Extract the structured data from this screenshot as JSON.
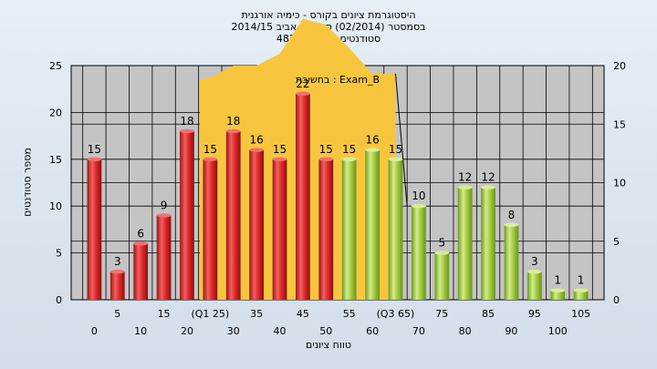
{
  "titles": {
    "line1": "היסטוגרמת ציונים בקורס - כימיה אורגנית",
    "line2": "בסמסטר  (02/2014)  סמסטר אביב 2014/15",
    "line3": "סטודנטים רשומים - 482"
  },
  "chart_data": {
    "type": "bar",
    "title": "היסטוגרמת ציונים בקורס - כימיה אורגנית",
    "xlabel": "טווח ציונים",
    "ylabel": "מספר סטודנטים",
    "annotation": "בחשיבת : Exam_B",
    "categories": [
      "0",
      "5",
      "10",
      "15",
      "20",
      "(Q1 25)",
      "30",
      "35",
      "40",
      "45",
      "50",
      "55",
      "60",
      "(Q3 65)",
      "70",
      "75",
      "80",
      "85",
      "90",
      "95",
      "100",
      "105"
    ],
    "values": [
      15,
      3,
      6,
      9,
      18,
      15,
      18,
      16,
      15,
      22,
      15,
      15,
      16,
      15,
      10,
      5,
      12,
      12,
      8,
      3,
      1,
      1
    ],
    "bar_colors": [
      "red",
      "red",
      "red",
      "red",
      "red",
      "red",
      "red",
      "red",
      "red",
      "red",
      "red",
      "green",
      "green",
      "green",
      "green",
      "green",
      "green",
      "green",
      "green",
      "green",
      "green",
      "green"
    ],
    "ylim": [
      0,
      25
    ],
    "yticks": [
      0,
      5,
      10,
      15,
      20,
      25
    ],
    "y2lim": [
      0,
      20
    ],
    "y2ticks": [
      0,
      5,
      10,
      15,
      20
    ],
    "area_band": {
      "x_start": "(Q1 25)",
      "x_end": "(Q3 65)",
      "upper": [
        19,
        20,
        20,
        21,
        24,
        23.5,
        21.5,
        19.3,
        19.3
      ]
    },
    "grid": true,
    "colors": {
      "red": "#e22b2b",
      "green": "#a9cf48",
      "band": "#f8c63e",
      "plot_bg": "#c4c4c4"
    }
  }
}
